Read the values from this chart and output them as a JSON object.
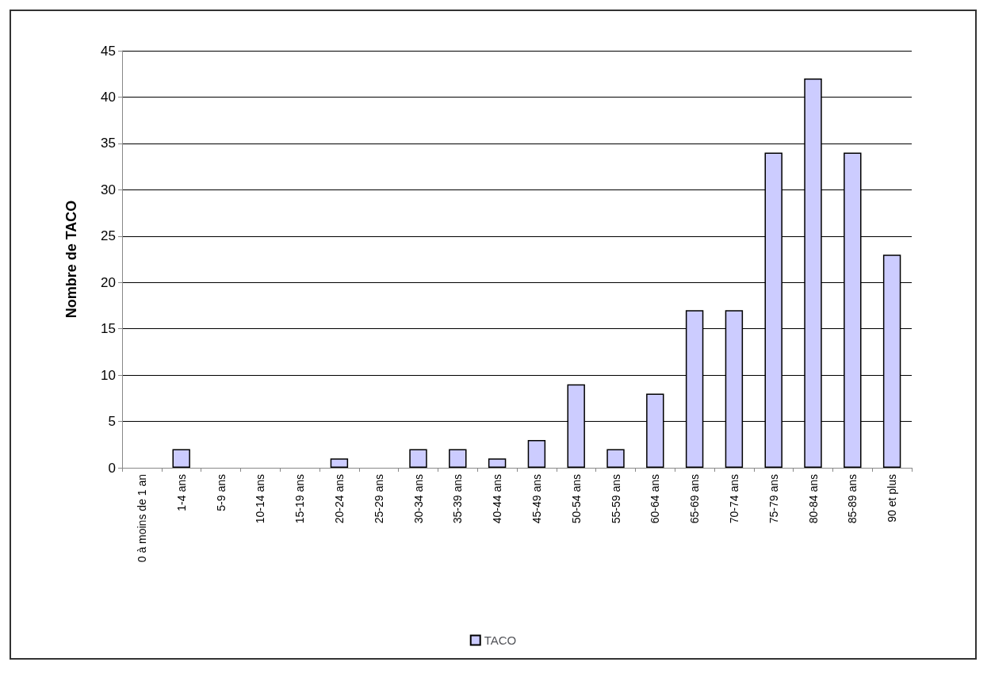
{
  "chart_data": {
    "type": "bar",
    "ylabel": "Nombre de TACO",
    "categories": [
      "0 à moins de 1 an",
      "1-4 ans",
      "5-9 ans",
      "10-14 ans",
      "15-19 ans",
      "20-24 ans",
      "25-29 ans",
      "30-34 ans",
      "35-39 ans",
      "40-44 ans",
      "45-49 ans",
      "50-54 ans",
      "55-59 ans",
      "60-64 ans",
      "65-69 ans",
      "70-74 ans",
      "75-79 ans",
      "80-84 ans",
      "85-89 ans",
      "90 et plus"
    ],
    "series": [
      {
        "name": "TACO",
        "color": "#ccccff",
        "values": [
          0,
          2,
          0,
          0,
          0,
          1,
          0,
          2,
          2,
          1,
          3,
          9,
          2,
          8,
          17,
          17,
          34,
          42,
          34,
          23
        ]
      }
    ],
    "ylim": [
      0,
      45
    ],
    "yticks": [
      0,
      5,
      10,
      15,
      20,
      25,
      30,
      35,
      40,
      45
    ],
    "grid": "y",
    "legend": "bottom"
  }
}
